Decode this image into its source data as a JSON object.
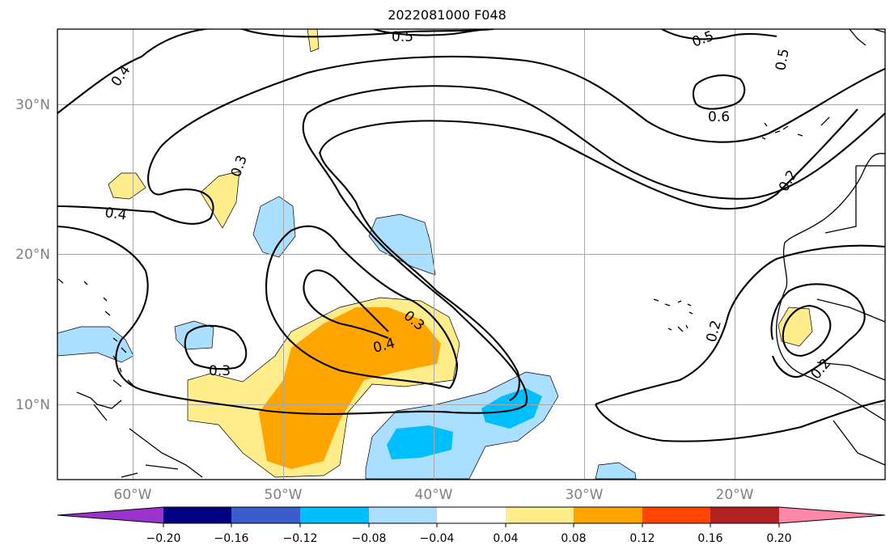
{
  "title": "2022081000 F048",
  "map": {
    "lat_ticks": [
      "30°N",
      "20°N",
      "10°N"
    ],
    "lon_ticks": [
      "60°W",
      "50°W",
      "40°W",
      "30°W",
      "20°W"
    ],
    "contour_labels": [
      "0.5",
      "0.5",
      "0.5",
      "0.4",
      "0.4",
      "0.6",
      "0.3",
      "0.3",
      "0.3",
      "0.2",
      "0.2",
      "0.4",
      "0.2"
    ]
  },
  "colorbar": {
    "colors": [
      "#9933cc",
      "#000080",
      "#3a5ccc",
      "#00bfff",
      "#aadfff",
      "#ffffff",
      "#ffec8b",
      "#ffa500",
      "#ff4500",
      "#b22222",
      "#ff88aa"
    ],
    "tick_labels": [
      "−0.20",
      "−0.16",
      "−0.12",
      "−0.08",
      "−0.04",
      "0.04",
      "0.08",
      "0.12",
      "0.16",
      "0.20"
    ]
  }
}
